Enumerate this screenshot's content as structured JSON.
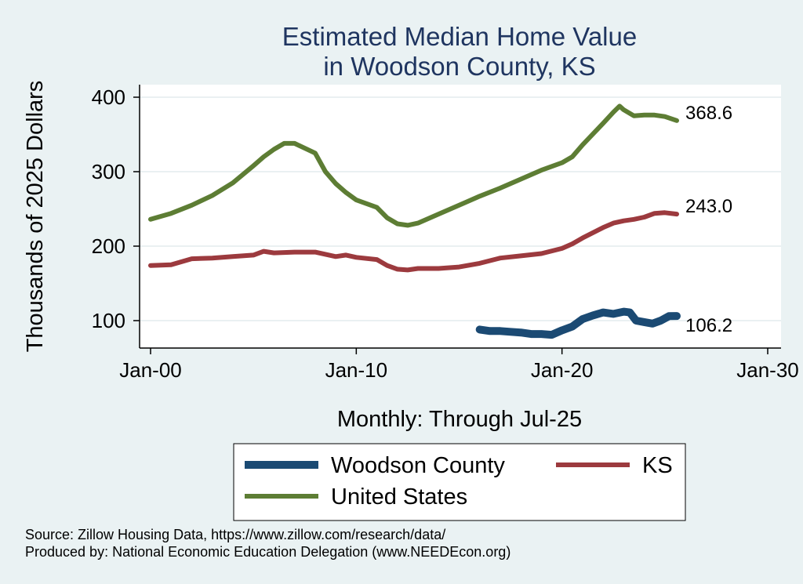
{
  "chart_data": {
    "type": "line",
    "title": [
      "Estimated Median Home Value",
      "in Woodson County, KS"
    ],
    "xlabel": "Monthly: Through Jul-25",
    "ylabel": "Thousands of 2025 Dollars",
    "x_ticks": [
      "Jan-00",
      "Jan-10",
      "Jan-20",
      "Jan-30"
    ],
    "y_ticks": [
      100,
      200,
      300,
      400
    ],
    "xlim": [
      2000,
      2030
    ],
    "ylim": [
      75,
      420
    ],
    "grid": true,
    "legend_position": "bottom",
    "series": [
      {
        "name": "Woodson County",
        "color": "#1b4a73",
        "end_label": "106.2",
        "points": [
          [
            2016.0,
            88
          ],
          [
            2016.5,
            86
          ],
          [
            2017.0,
            86
          ],
          [
            2017.5,
            85
          ],
          [
            2018.0,
            84
          ],
          [
            2018.5,
            82
          ],
          [
            2019.0,
            82
          ],
          [
            2019.5,
            81
          ],
          [
            2020.0,
            87
          ],
          [
            2020.5,
            92
          ],
          [
            2021.0,
            102
          ],
          [
            2021.5,
            107
          ],
          [
            2022.0,
            111
          ],
          [
            2022.5,
            109
          ],
          [
            2023.0,
            112
          ],
          [
            2023.3,
            111
          ],
          [
            2023.6,
            100
          ],
          [
            2024.0,
            98
          ],
          [
            2024.4,
            96
          ],
          [
            2024.8,
            100
          ],
          [
            2025.2,
            106
          ],
          [
            2025.58,
            106.2
          ]
        ]
      },
      {
        "name": "KS",
        "color": "#9c3a3e",
        "end_label": "243.0",
        "points": [
          [
            2000.0,
            174
          ],
          [
            2001.0,
            175
          ],
          [
            2002.0,
            183
          ],
          [
            2003.0,
            184
          ],
          [
            2004.0,
            186
          ],
          [
            2005.0,
            188
          ],
          [
            2005.5,
            193
          ],
          [
            2006.0,
            191
          ],
          [
            2007.0,
            192
          ],
          [
            2008.0,
            192
          ],
          [
            2009.0,
            186
          ],
          [
            2009.5,
            188
          ],
          [
            2010.0,
            185
          ],
          [
            2011.0,
            182
          ],
          [
            2011.5,
            174
          ],
          [
            2012.0,
            169
          ],
          [
            2012.5,
            168
          ],
          [
            2013.0,
            170
          ],
          [
            2014.0,
            170
          ],
          [
            2015.0,
            172
          ],
          [
            2016.0,
            177
          ],
          [
            2017.0,
            184
          ],
          [
            2018.0,
            187
          ],
          [
            2019.0,
            190
          ],
          [
            2020.0,
            197
          ],
          [
            2020.5,
            203
          ],
          [
            2021.0,
            211
          ],
          [
            2022.0,
            225
          ],
          [
            2022.5,
            231
          ],
          [
            2023.0,
            234
          ],
          [
            2023.5,
            236
          ],
          [
            2024.0,
            239
          ],
          [
            2024.5,
            244
          ],
          [
            2025.0,
            245
          ],
          [
            2025.58,
            243.0
          ]
        ]
      },
      {
        "name": "United States",
        "color": "#5d7d34",
        "end_label": "368.6",
        "points": [
          [
            2000.0,
            236
          ],
          [
            2001.0,
            244
          ],
          [
            2002.0,
            255
          ],
          [
            2003.0,
            268
          ],
          [
            2004.0,
            285
          ],
          [
            2005.0,
            308
          ],
          [
            2005.5,
            320
          ],
          [
            2006.0,
            330
          ],
          [
            2006.5,
            338
          ],
          [
            2007.0,
            338
          ],
          [
            2008.0,
            325
          ],
          [
            2008.5,
            300
          ],
          [
            2009.0,
            284
          ],
          [
            2009.5,
            272
          ],
          [
            2010.0,
            262
          ],
          [
            2011.0,
            252
          ],
          [
            2011.5,
            238
          ],
          [
            2012.0,
            230
          ],
          [
            2012.5,
            228
          ],
          [
            2013.0,
            231
          ],
          [
            2014.0,
            243
          ],
          [
            2015.0,
            255
          ],
          [
            2016.0,
            267
          ],
          [
            2017.0,
            278
          ],
          [
            2018.0,
            290
          ],
          [
            2019.0,
            302
          ],
          [
            2020.0,
            312
          ],
          [
            2020.5,
            320
          ],
          [
            2021.0,
            336
          ],
          [
            2022.0,
            365
          ],
          [
            2022.5,
            380
          ],
          [
            2022.8,
            388
          ],
          [
            2023.0,
            383
          ],
          [
            2023.5,
            375
          ],
          [
            2024.0,
            376
          ],
          [
            2024.5,
            376
          ],
          [
            2025.0,
            374
          ],
          [
            2025.58,
            368.6
          ]
        ]
      }
    ]
  },
  "legend": {
    "items": [
      "Woodson County",
      "KS",
      "United States"
    ]
  },
  "notes": {
    "source": "Source: Zillow Housing Data, https://www.zillow.com/research/data/",
    "produced": "Produced by: National Economic Education Delegation (www.NEEDEcon.org)"
  }
}
